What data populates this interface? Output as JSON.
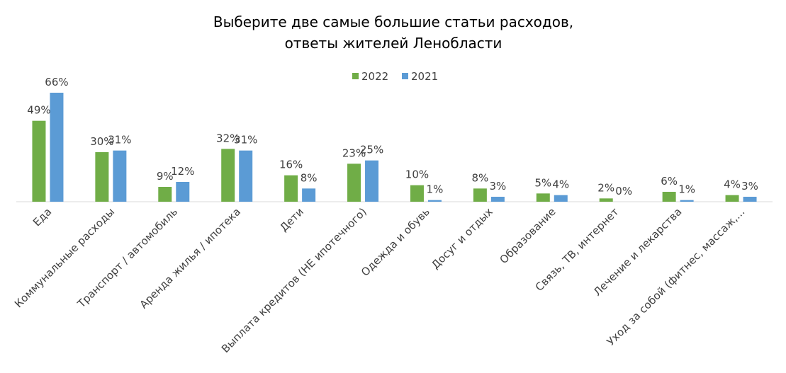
{
  "chart_data": {
    "type": "bar",
    "title": [
      "Выберите две самые большие статьи расходов,",
      "ответы жителей Ленобласти"
    ],
    "categories": [
      "Еда",
      "Коммунальные расходы",
      "Транспорт / автомобиль",
      "Аренда жилья / ипотека",
      "Дети",
      "Выплата кредитов (НЕ ипотечного)",
      "Одежда и обувь",
      "Досуг и отдых",
      "Образование",
      "Связь, ТВ, интернет",
      "Лечение и лекарства",
      "Уход за собой (фитнес, массаж,..."
    ],
    "series": [
      {
        "name": "2022",
        "color": "#70ad47",
        "values": [
          49,
          30,
          9,
          32,
          16,
          23,
          10,
          8,
          5,
          2,
          6,
          4
        ],
        "value_labels": [
          "49%",
          "30%",
          "9%",
          "32%",
          "16%",
          "23%",
          "10%",
          "8%",
          "5%",
          "2%",
          "6%",
          "4%"
        ]
      },
      {
        "name": "2021",
        "color": "#5b9bd5",
        "values": [
          66,
          31,
          12,
          31,
          8,
          25,
          1,
          3,
          4,
          0,
          1,
          3
        ],
        "value_labels": [
          "66%",
          "31%",
          "12%",
          "31%",
          "8%",
          "25%",
          "1%",
          "3%",
          "4%",
          "0%",
          "1%",
          "3%"
        ]
      }
    ],
    "legend": "top"
  }
}
